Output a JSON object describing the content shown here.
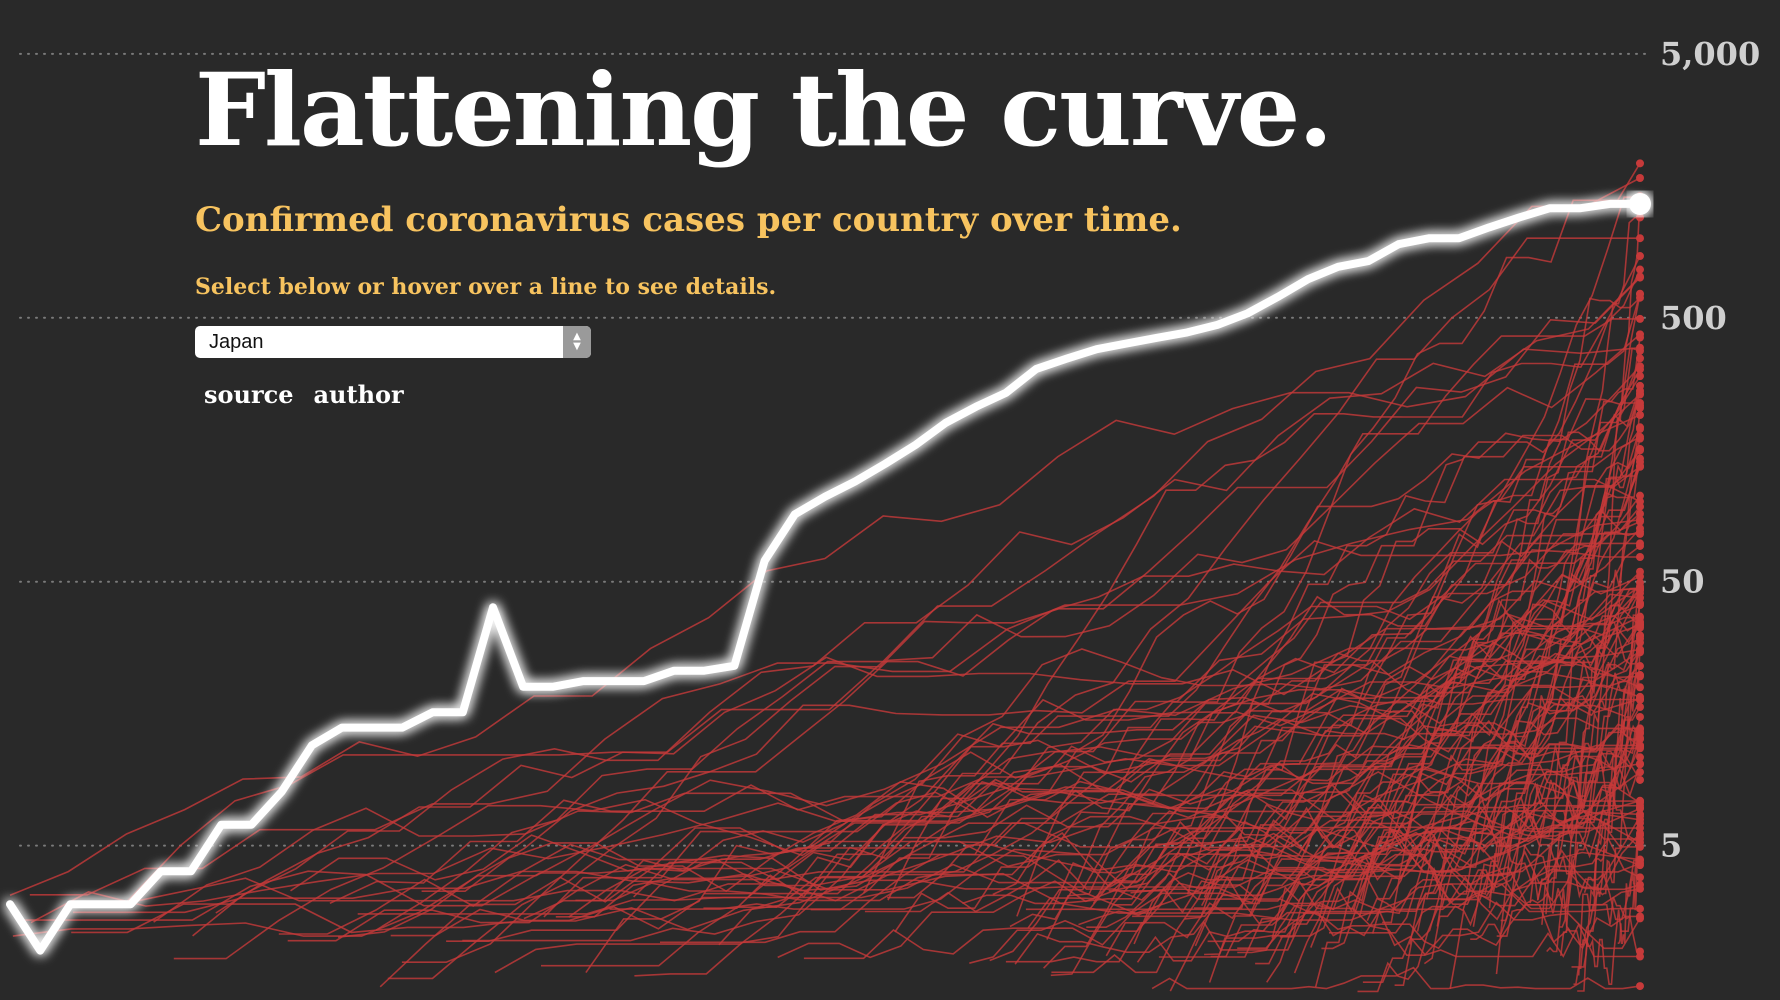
{
  "header": {
    "title": "Flattening the curve.",
    "subtitle": "Confirmed coronavirus cases per country over time.",
    "instruction": "Select below or hover over a line to see details."
  },
  "country_select": {
    "selected": "Japan"
  },
  "links": {
    "source": "source",
    "author": "author"
  },
  "colors": {
    "background": "#292929",
    "country_lines": "#c63a3a",
    "highlight": "#ffffff",
    "subtitle": "#f7c35f"
  },
  "chart_data": {
    "type": "line",
    "y_scale": "log",
    "ylim": [
      1.3,
      8000
    ],
    "y_ticks": [
      {
        "value": 5000,
        "label": "5,000"
      },
      {
        "value": 500,
        "label": "500"
      },
      {
        "value": 50,
        "label": "50"
      },
      {
        "value": 5,
        "label": "5"
      }
    ],
    "grid": "dotted horizontal at ticks",
    "highlighted_series": {
      "name": "Japan",
      "values": [
        3,
        2,
        3,
        3,
        3,
        4,
        4,
        6,
        6,
        8,
        12,
        14,
        14,
        14,
        16,
        16,
        40,
        20,
        20,
        21,
        21,
        21,
        23,
        23,
        24,
        60,
        90,
        105,
        120,
        140,
        165,
        200,
        230,
        260,
        320,
        350,
        380,
        400,
        420,
        440,
        470,
        520,
        600,
        700,
        780,
        820,
        950,
        1000,
        1000,
        1100,
        1200,
        1300,
        1300,
        1350,
        1350
      ]
    },
    "other_series_count": 140
  }
}
